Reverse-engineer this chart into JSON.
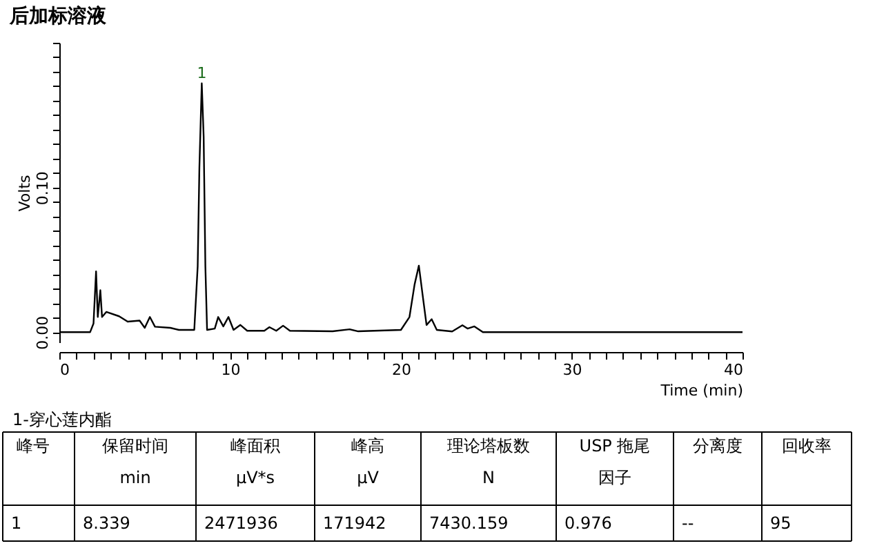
{
  "chart_data": {
    "type": "line",
    "title": "后加标溶液",
    "xlabel": "Time (min)",
    "ylabel": "Volts",
    "x": [
      0,
      1.8,
      2.0,
      2.15,
      2.25,
      2.4,
      2.5,
      2.75,
      3.5,
      4.0,
      4.7,
      5.0,
      5.3,
      5.6,
      6.5,
      7.0,
      7.9,
      8.1,
      8.2,
      8.339,
      8.45,
      8.55,
      8.65,
      9.1,
      9.3,
      9.6,
      9.9,
      10.2,
      10.6,
      11.0,
      12.0,
      12.3,
      12.7,
      13.1,
      13.5,
      16.0,
      17.0,
      17.5,
      20.0,
      20.5,
      20.8,
      21.05,
      21.3,
      21.5,
      21.8,
      22.1,
      23.0,
      23.6,
      23.9,
      24.3,
      24.8,
      40.0
    ],
    "series": [
      {
        "color": "#000000",
        "values": [
          0,
          0,
          0.006,
          0.042,
          0.0105,
          0.029,
          0.0105,
          0.014,
          0.011,
          0.0073,
          0.008,
          0.003,
          0.0105,
          0.0038,
          0.003,
          0.0016,
          0.0016,
          0.0455,
          0.114,
          0.172,
          0.135,
          0.0455,
          0.0016,
          0.0025,
          0.0105,
          0.004,
          0.0105,
          0.0016,
          0.005,
          0.001,
          0.001,
          0.0035,
          0.001,
          0.0045,
          0.001,
          0.0006,
          0.002,
          0.0006,
          0.0016,
          0.0105,
          0.033,
          0.046,
          0.023,
          0.005,
          0.009,
          0.0016,
          0.0005,
          0.0048,
          0.0025,
          0.004,
          0,
          0
        ]
      }
    ],
    "xlim": [
      0,
      40
    ],
    "ylim": [
      -0.007,
      0.2
    ],
    "xticks": [
      {
        "value": 0,
        "label": "0"
      },
      {
        "value": 1,
        "label": null
      },
      {
        "value": 2,
        "label": null
      },
      {
        "value": 3,
        "label": null
      },
      {
        "value": 4,
        "label": null
      },
      {
        "value": 5,
        "label": null
      },
      {
        "value": 6,
        "label": null
      },
      {
        "value": 7,
        "label": null
      },
      {
        "value": 8,
        "label": null
      },
      {
        "value": 9,
        "label": null
      },
      {
        "value": 10,
        "label": "10"
      },
      {
        "value": 11,
        "label": null
      },
      {
        "value": 12,
        "label": null
      },
      {
        "value": 13,
        "label": null
      },
      {
        "value": 14,
        "label": null
      },
      {
        "value": 15,
        "label": null
      },
      {
        "value": 16,
        "label": null
      },
      {
        "value": 17,
        "label": null
      },
      {
        "value": 18,
        "label": null
      },
      {
        "value": 19,
        "label": null
      },
      {
        "value": 20,
        "label": "20"
      },
      {
        "value": 21,
        "label": null
      },
      {
        "value": 22,
        "label": null
      },
      {
        "value": 23,
        "label": null
      },
      {
        "value": 24,
        "label": null
      },
      {
        "value": 25,
        "label": null
      },
      {
        "value": 26,
        "label": null
      },
      {
        "value": 27,
        "label": null
      },
      {
        "value": 28,
        "label": null
      },
      {
        "value": 29,
        "label": null
      },
      {
        "value": 30,
        "label": "30"
      },
      {
        "value": 31,
        "label": null
      },
      {
        "value": 32,
        "label": null
      },
      {
        "value": 33,
        "label": null
      },
      {
        "value": 34,
        "label": null
      },
      {
        "value": 35,
        "label": null
      },
      {
        "value": 36,
        "label": null
      },
      {
        "value": 37,
        "label": null
      },
      {
        "value": 38,
        "label": null
      },
      {
        "value": 39,
        "label": null
      },
      {
        "value": 40,
        "label": "40"
      }
    ],
    "yticks": [
      {
        "value": 0,
        "label": "0.00"
      },
      {
        "value": 0.01,
        "label": null
      },
      {
        "value": 0.02,
        "label": null
      },
      {
        "value": 0.03,
        "label": null
      },
      {
        "value": 0.04,
        "label": null
      },
      {
        "value": 0.05,
        "label": null
      },
      {
        "value": 0.06,
        "label": null
      },
      {
        "value": 0.07,
        "label": null
      },
      {
        "value": 0.08,
        "label": null
      },
      {
        "value": 0.09,
        "label": null
      },
      {
        "value": 0.1,
        "label": "0.10"
      },
      {
        "value": 0.11,
        "label": null
      },
      {
        "value": 0.12,
        "label": null
      },
      {
        "value": 0.13,
        "label": null
      },
      {
        "value": 0.14,
        "label": null
      },
      {
        "value": 0.15,
        "label": null
      },
      {
        "value": 0.16,
        "label": null
      },
      {
        "value": 0.17,
        "label": null
      },
      {
        "value": 0.18,
        "label": null
      },
      {
        "value": 0.19,
        "label": null
      },
      {
        "value": 0.2,
        "label": null
      }
    ],
    "grid": false,
    "marker": "none",
    "line_style": "solid",
    "annotations": [
      {
        "text": "1",
        "x": 8.339,
        "y": 0.172
      },
      "1-穿心莲内酯",
      "峰号",
      "保留时间\nmin",
      "峰面积\nμV*s",
      "峰高\nμV",
      "理论塔板数\nN",
      "USP 拖尾因子",
      "分离度",
      "回收率",
      "1",
      "8.339",
      "2471936",
      "171942",
      "7430.159",
      "0.976",
      "--",
      "95"
    ]
  }
}
